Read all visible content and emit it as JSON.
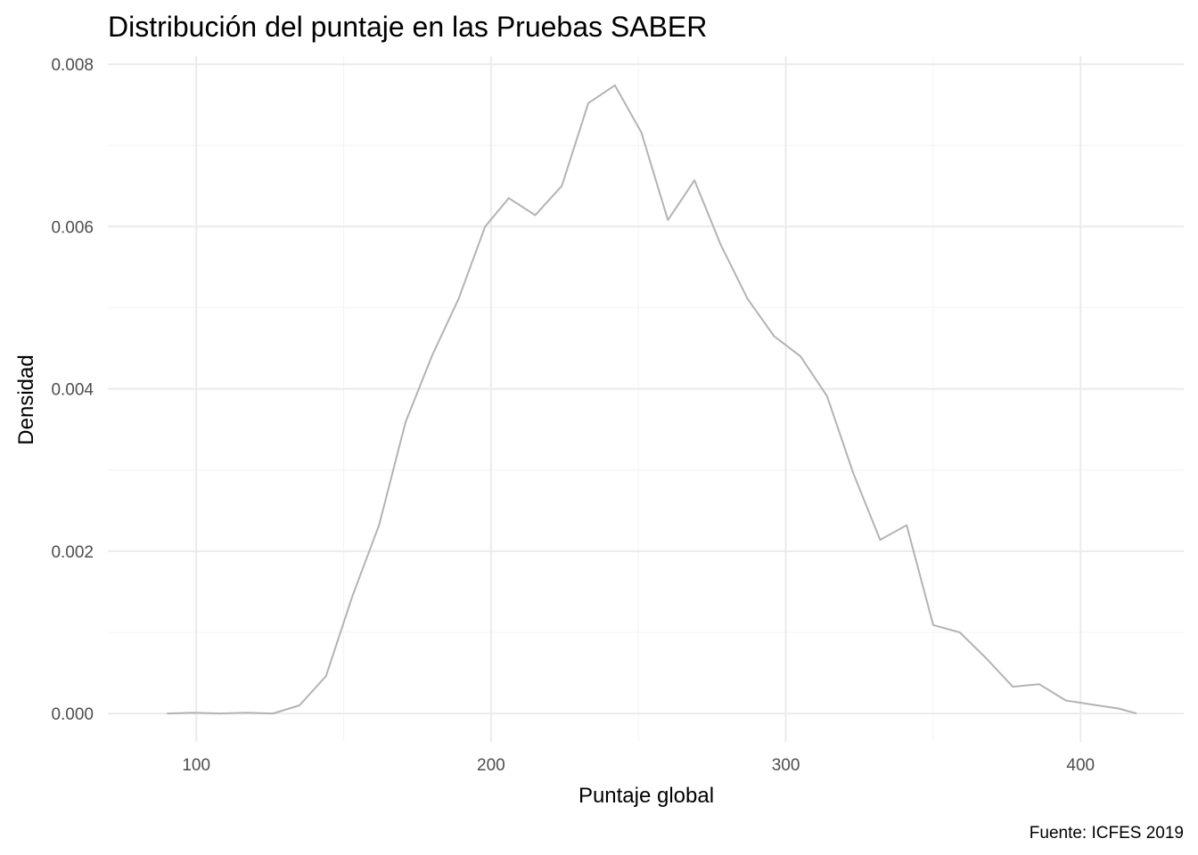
{
  "chart_data": {
    "type": "line",
    "title": "Distribución del puntaje en las Pruebas SABER",
    "xlabel": "Puntaje global",
    "ylabel": "Densidad",
    "caption": "Fuente: ICFES 2019",
    "xlim": [
      70,
      435
    ],
    "ylim": [
      -0.00035,
      0.0081
    ],
    "x_ticks": [
      100,
      200,
      300,
      400
    ],
    "x_tick_labels": [
      "100",
      "200",
      "300",
      "400"
    ],
    "y_ticks": [
      0,
      0.002,
      0.004,
      0.006,
      0.008
    ],
    "y_tick_labels": [
      "0.000",
      "0.002",
      "0.004",
      "0.006",
      "0.008"
    ],
    "grid": true,
    "line_color": "#b3b3b3",
    "series": [
      {
        "x": [
          90,
          99,
          108,
          117,
          126,
          135,
          144,
          153,
          162,
          171,
          180,
          189,
          198,
          206,
          215,
          224,
          233,
          242,
          251,
          260,
          269,
          278,
          287,
          296,
          305,
          314,
          323,
          332,
          341,
          350,
          359,
          368,
          377,
          386,
          395,
          404,
          413,
          419
        ],
        "y": [
          0.0,
          1e-05,
          0.0,
          1e-05,
          0.0,
          0.0001,
          0.00046,
          0.00145,
          0.00232,
          0.00359,
          0.00441,
          0.00511,
          0.006,
          0.00635,
          0.00614,
          0.0065,
          0.00752,
          0.00774,
          0.00716,
          0.00608,
          0.00657,
          0.00577,
          0.00511,
          0.00465,
          0.0044,
          0.00391,
          0.00295,
          0.00214,
          0.00232,
          0.00109,
          0.001,
          0.00068,
          0.00033,
          0.00036,
          0.00016,
          0.00011,
          6e-05,
          0.0
        ]
      }
    ]
  }
}
